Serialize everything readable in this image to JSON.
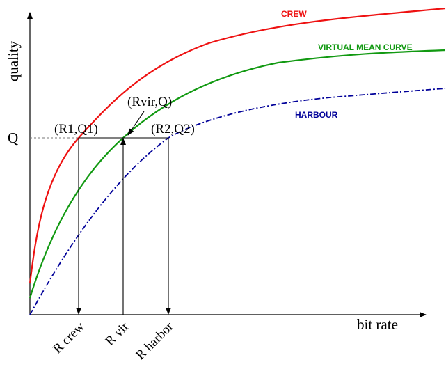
{
  "axes": {
    "ylabel": "quality",
    "xlabel": "bit rate",
    "y_tick_label": "Q"
  },
  "curves": {
    "crew": {
      "label": "CREW",
      "color": "#ee1111"
    },
    "virtual": {
      "label": "VIRTUAL MEAN CURVE",
      "color": "#119911"
    },
    "harbour": {
      "label": "HARBOUR",
      "color": "#000099"
    }
  },
  "points": {
    "r1q1": "(R1,Q1)",
    "rvirq": "(Rvir,Q)",
    "r2q2": "(R2,Q2)"
  },
  "rate_labels": {
    "crew": "R crew",
    "vir": "R vir",
    "harbor": "R harbor"
  }
}
